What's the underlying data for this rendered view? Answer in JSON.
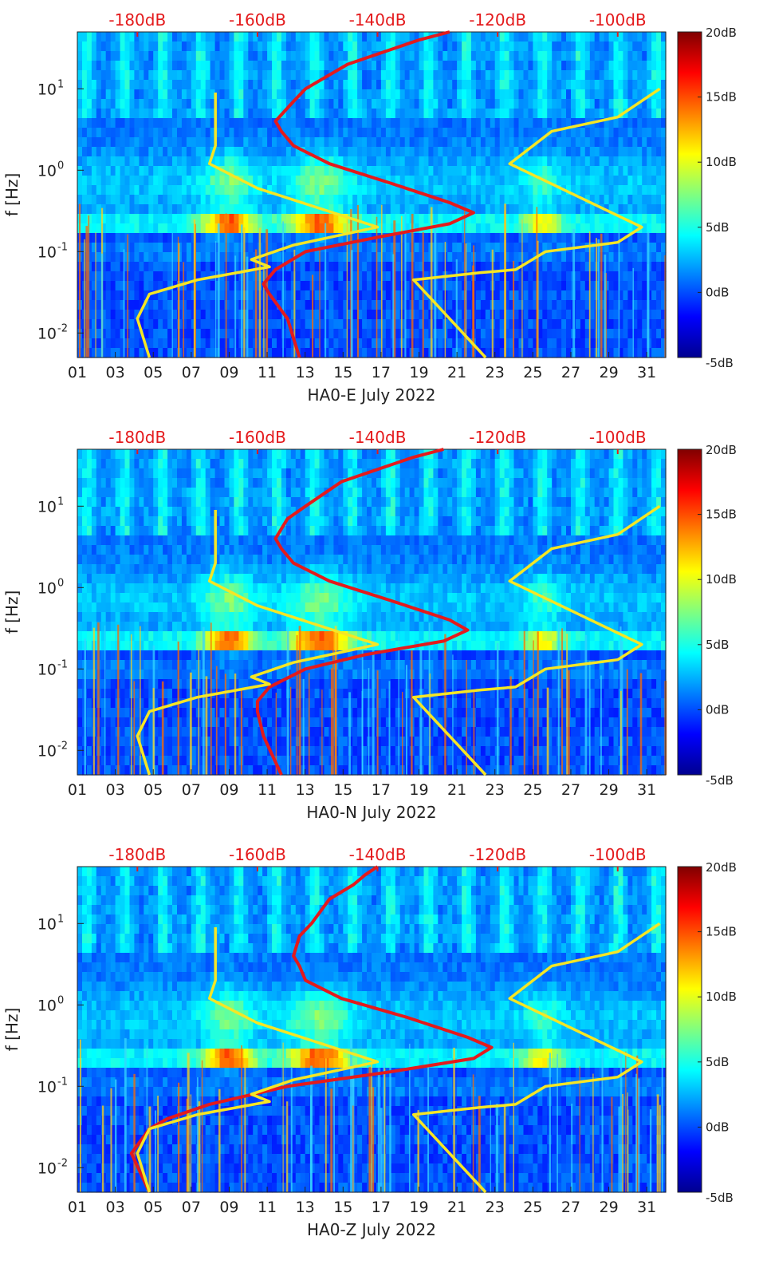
{
  "chart_data": [
    {
      "type": "heatmap",
      "xlabel": "HA0-E July 2022",
      "ylabel": "f [Hz]",
      "x_ticks": [
        "01",
        "03",
        "05",
        "07",
        "09",
        "11",
        "13",
        "15",
        "17",
        "19",
        "21",
        "23",
        "25",
        "27",
        "29",
        "31"
      ],
      "x_range": [
        1,
        32
      ],
      "y_scale": "log",
      "y_ticks": [
        "10-2",
        "10-1",
        "100",
        "101"
      ],
      "y_range_hz": [
        0.005,
        50
      ],
      "top_axis_ticks": [
        "-180dB",
        "-160dB",
        "-140dB",
        "-120dB",
        "-100dB"
      ],
      "top_axis_range_db": [
        -190,
        -92
      ],
      "colorbar_ticks": [
        "-5dB",
        "0dB",
        "5dB",
        "10dB",
        "15dB",
        "20dB"
      ],
      "colorbar_range_db": [
        -5,
        20
      ],
      "colormap": "jet",
      "series": [
        {
          "color": "#e41a1c",
          "note": "median PSD (top dB axis)",
          "points": [
            [
              -128,
              50
            ],
            [
              -133,
              40
            ],
            [
              -138,
              30
            ],
            [
              -145,
              20
            ],
            [
              -152,
              10
            ],
            [
              -154,
              7
            ],
            [
              -157,
              4
            ],
            [
              -156,
              3
            ],
            [
              -154,
              2
            ],
            [
              -148,
              1.2
            ],
            [
              -138,
              0.7
            ],
            [
              -128,
              0.4
            ],
            [
              -124,
              0.3
            ],
            [
              -128,
              0.22
            ],
            [
              -140,
              0.15
            ],
            [
              -152,
              0.1
            ],
            [
              -157,
              0.06
            ],
            [
              -159,
              0.04
            ],
            [
              -158,
              0.03
            ],
            [
              -155,
              0.015
            ],
            [
              -153,
              0.005
            ]
          ]
        },
        {
          "color": "#f5e625",
          "note": "NLNM",
          "points": [
            [
              -178,
              0.005
            ],
            [
              -180,
              0.015
            ],
            [
              -178,
              0.03
            ],
            [
              -170,
              0.045
            ],
            [
              -158,
              0.065
            ],
            [
              -161,
              0.08
            ],
            [
              -154,
              0.12
            ],
            [
              -140,
              0.2
            ],
            [
              -160,
              0.6
            ],
            [
              -168,
              1.2
            ],
            [
              -167,
              2.0
            ],
            [
              -167,
              9.0
            ]
          ]
        },
        {
          "color": "#f5e625",
          "note": "NHNM",
          "points": [
            [
              -122,
              0.005
            ],
            [
              -134,
              0.045
            ],
            [
              -123,
              0.055
            ],
            [
              -117,
              0.06
            ],
            [
              -112,
              0.1
            ],
            [
              -100,
              0.13
            ],
            [
              -96,
              0.2
            ],
            [
              -118,
              1.2
            ],
            [
              -111,
              3.0
            ],
            [
              -100,
              4.5
            ],
            [
              -93,
              10
            ]
          ]
        }
      ]
    },
    {
      "type": "heatmap",
      "xlabel": "HA0-N July 2022",
      "ylabel": "f [Hz]",
      "x_ticks": [
        "01",
        "03",
        "05",
        "07",
        "09",
        "11",
        "13",
        "15",
        "17",
        "19",
        "21",
        "23",
        "25",
        "27",
        "29",
        "31"
      ],
      "x_range": [
        1,
        32
      ],
      "y_scale": "log",
      "y_ticks": [
        "10-2",
        "10-1",
        "100",
        "101"
      ],
      "y_range_hz": [
        0.005,
        50
      ],
      "top_axis_ticks": [
        "-180dB",
        "-160dB",
        "-140dB",
        "-120dB",
        "-100dB"
      ],
      "top_axis_range_db": [
        -190,
        -92
      ],
      "colorbar_ticks": [
        "-5dB",
        "0dB",
        "5dB",
        "10dB",
        "15dB",
        "20dB"
      ],
      "colorbar_range_db": [
        -5,
        20
      ],
      "colormap": "jet",
      "series": [
        {
          "color": "#e41a1c",
          "note": "median PSD (top dB axis)",
          "points": [
            [
              -129,
              50
            ],
            [
              -134,
              40
            ],
            [
              -139,
              30
            ],
            [
              -146,
              20
            ],
            [
              -152,
              10
            ],
            [
              -155,
              7
            ],
            [
              -157,
              4
            ],
            [
              -156,
              3
            ],
            [
              -154,
              2
            ],
            [
              -148,
              1.2
            ],
            [
              -138,
              0.7
            ],
            [
              -128,
              0.4
            ],
            [
              -125,
              0.3
            ],
            [
              -129,
              0.22
            ],
            [
              -142,
              0.15
            ],
            [
              -152,
              0.1
            ],
            [
              -158,
              0.06
            ],
            [
              -160,
              0.04
            ],
            [
              -160,
              0.03
            ],
            [
              -159,
              0.015
            ],
            [
              -156,
              0.005
            ]
          ]
        },
        {
          "color": "#f5e625",
          "note": "NLNM",
          "points": [
            [
              -178,
              0.005
            ],
            [
              -180,
              0.015
            ],
            [
              -178,
              0.03
            ],
            [
              -170,
              0.045
            ],
            [
              -158,
              0.065
            ],
            [
              -161,
              0.08
            ],
            [
              -154,
              0.12
            ],
            [
              -140,
              0.2
            ],
            [
              -160,
              0.6
            ],
            [
              -168,
              1.2
            ],
            [
              -167,
              2.0
            ],
            [
              -167,
              9.0
            ]
          ]
        },
        {
          "color": "#f5e625",
          "note": "NHNM",
          "points": [
            [
              -122,
              0.005
            ],
            [
              -134,
              0.045
            ],
            [
              -123,
              0.055
            ],
            [
              -117,
              0.06
            ],
            [
              -112,
              0.1
            ],
            [
              -100,
              0.13
            ],
            [
              -96,
              0.2
            ],
            [
              -118,
              1.2
            ],
            [
              -111,
              3.0
            ],
            [
              -100,
              4.5
            ],
            [
              -93,
              10
            ]
          ]
        }
      ]
    },
    {
      "type": "heatmap",
      "xlabel": "HA0-Z July 2022",
      "ylabel": "f [Hz]",
      "x_ticks": [
        "01",
        "03",
        "05",
        "07",
        "09",
        "11",
        "13",
        "15",
        "17",
        "19",
        "21",
        "23",
        "25",
        "27",
        "29",
        "31"
      ],
      "x_range": [
        1,
        32
      ],
      "y_scale": "log",
      "y_ticks": [
        "10-2",
        "10-1",
        "100",
        "101"
      ],
      "y_range_hz": [
        0.005,
        50
      ],
      "top_axis_ticks": [
        "-180dB",
        "-160dB",
        "-140dB",
        "-120dB",
        "-100dB"
      ],
      "top_axis_range_db": [
        -190,
        -92
      ],
      "colorbar_ticks": [
        "-5dB",
        "0dB",
        "5dB",
        "10dB",
        "15dB",
        "20dB"
      ],
      "colorbar_range_db": [
        -5,
        20
      ],
      "colormap": "jet",
      "series": [
        {
          "color": "#e41a1c",
          "note": "median PSD (top dB axis)",
          "points": [
            [
              -140,
              50
            ],
            [
              -142,
              40
            ],
            [
              -144,
              30
            ],
            [
              -148,
              20
            ],
            [
              -151,
              10
            ],
            [
              -153,
              7
            ],
            [
              -154,
              4
            ],
            [
              -153,
              3
            ],
            [
              -152,
              2
            ],
            [
              -146,
              1.2
            ],
            [
              -135,
              0.7
            ],
            [
              -125,
              0.4
            ],
            [
              -121,
              0.3
            ],
            [
              -124,
              0.22
            ],
            [
              -138,
              0.15
            ],
            [
              -155,
              0.1
            ],
            [
              -168,
              0.06
            ],
            [
              -175,
              0.04
            ],
            [
              -178,
              0.03
            ],
            [
              -181,
              0.015
            ],
            [
              -178,
              0.005
            ]
          ]
        },
        {
          "color": "#f5e625",
          "note": "NLNM",
          "points": [
            [
              -178,
              0.005
            ],
            [
              -180,
              0.015
            ],
            [
              -178,
              0.03
            ],
            [
              -170,
              0.045
            ],
            [
              -158,
              0.065
            ],
            [
              -161,
              0.08
            ],
            [
              -154,
              0.12
            ],
            [
              -140,
              0.2
            ],
            [
              -160,
              0.6
            ],
            [
              -168,
              1.2
            ],
            [
              -167,
              2.0
            ],
            [
              -167,
              9.0
            ]
          ]
        },
        {
          "color": "#f5e625",
          "note": "NHNM",
          "points": [
            [
              -122,
              0.005
            ],
            [
              -134,
              0.045
            ],
            [
              -123,
              0.055
            ],
            [
              -117,
              0.06
            ],
            [
              -112,
              0.1
            ],
            [
              -100,
              0.13
            ],
            [
              -96,
              0.2
            ],
            [
              -118,
              1.2
            ],
            [
              -111,
              3.0
            ],
            [
              -100,
              4.5
            ],
            [
              -93,
              10
            ]
          ]
        }
      ]
    }
  ]
}
